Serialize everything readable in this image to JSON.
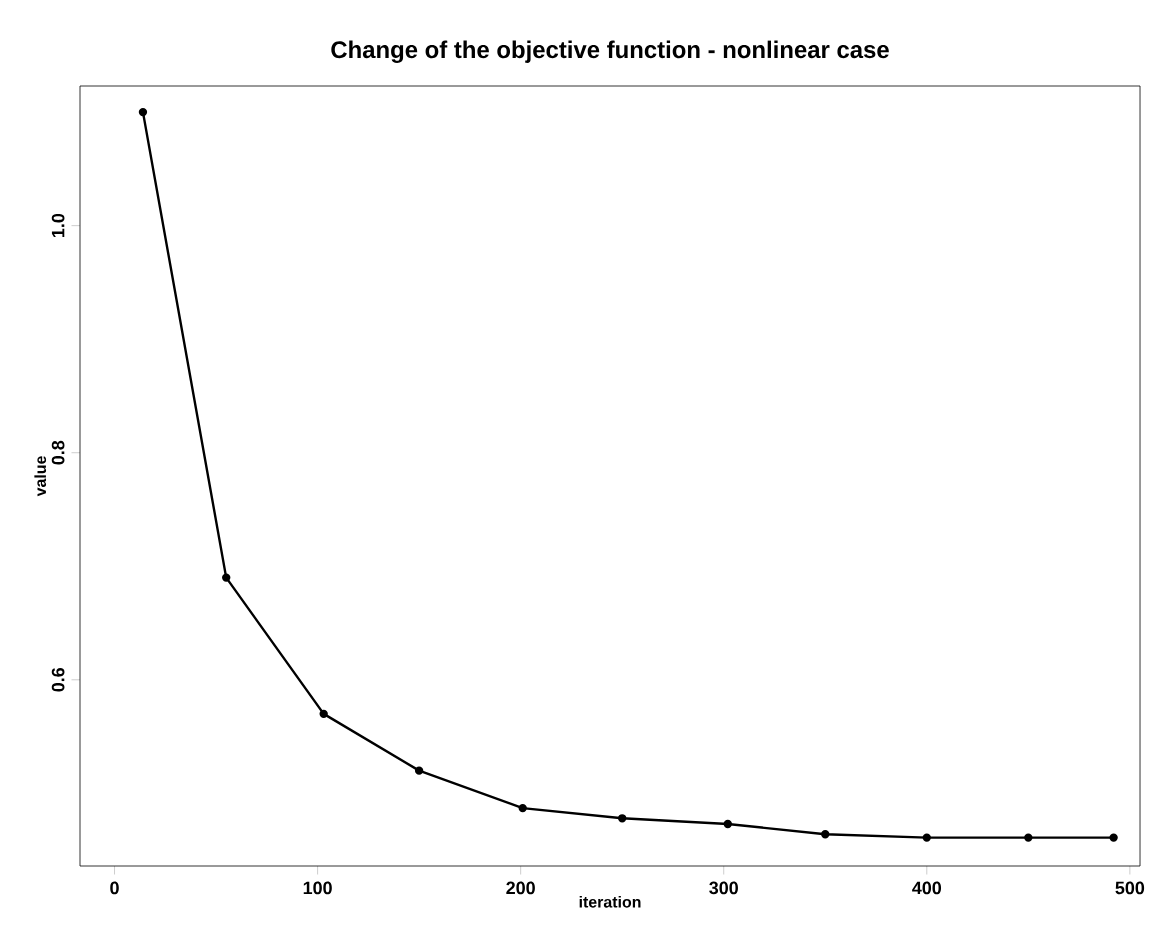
{
  "chart_data": {
    "type": "line",
    "title": "Change of the objective function - nonlinear case",
    "xlabel": "iteration",
    "ylabel": "value",
    "x": [
      14,
      55,
      103,
      150,
      201,
      250,
      302,
      350,
      400,
      450,
      492
    ],
    "series": [
      {
        "color": "#000000",
        "values": [
          1.1,
          0.69,
          0.57,
          0.52,
          0.487,
          0.478,
          0.473,
          0.464,
          0.461,
          0.461,
          0.461
        ]
      }
    ],
    "xlim": [
      -17,
      505
    ],
    "ylim": [
      0.436,
      1.123
    ],
    "xticks": [
      0,
      100,
      200,
      300,
      400,
      500
    ],
    "yticks": [
      {
        "value": 0.6,
        "label": "0.6"
      },
      {
        "value": 0.8,
        "label": "0.8"
      },
      {
        "value": 1.0,
        "label": "1.0"
      }
    ],
    "marker": "circle",
    "line_style": "solid"
  }
}
